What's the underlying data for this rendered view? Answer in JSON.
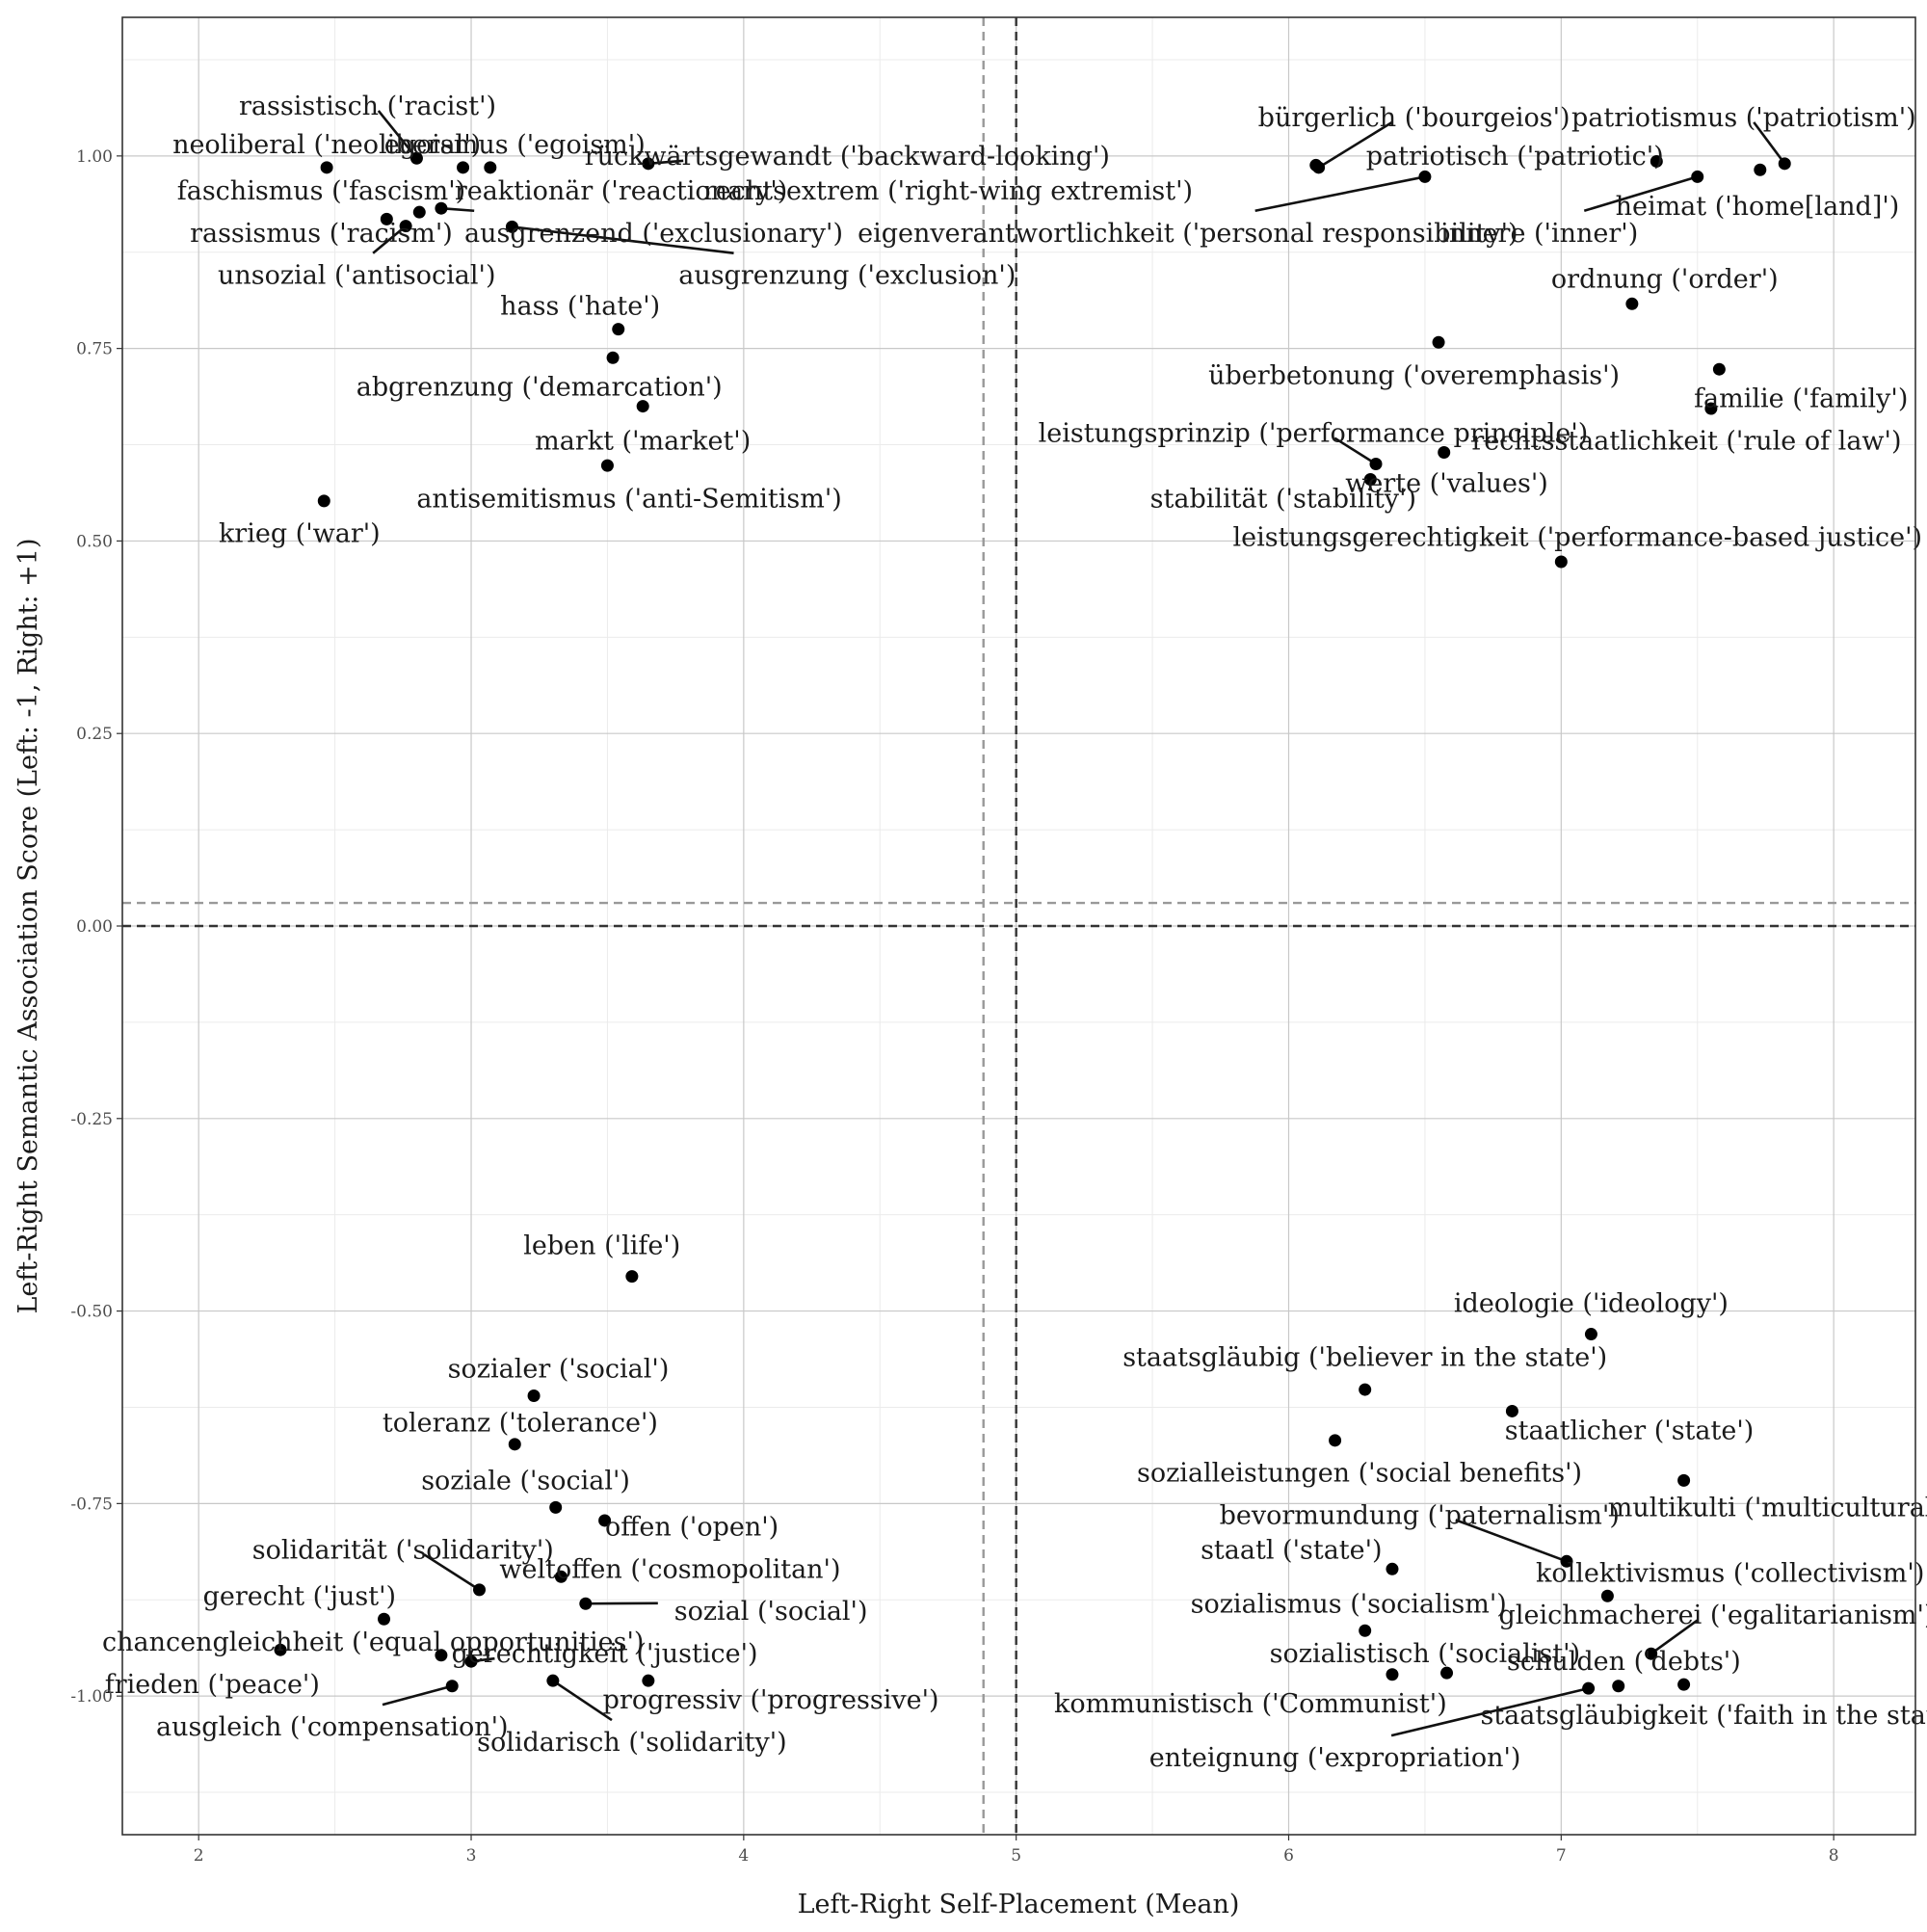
{
  "chart_data": {
    "type": "scatter",
    "title": "",
    "xlabel": "Left-Right Self-Placement (Mean)",
    "ylabel": "Left-Right Semantic Association Score (Left: -1, Right: +1)",
    "xlim": [
      1.72,
      8.3
    ],
    "ylim": [
      -1.18,
      1.18
    ],
    "x_ticks": [
      2,
      3,
      4,
      5,
      6,
      7,
      8
    ],
    "y_ticks": [
      -1.0,
      -0.75,
      -0.5,
      -0.25,
      0.0,
      0.25,
      0.5,
      0.75,
      1.0
    ],
    "x_tick_labels": [
      "2",
      "3",
      "4",
      "5",
      "6",
      "7",
      "8"
    ],
    "y_tick_labels": [
      "-1.00",
      "-0.75",
      "-0.50",
      "-0.25",
      "0.00",
      "0.25",
      "0.50",
      "0.75",
      "1.00"
    ],
    "grid": true,
    "reference_lines": [
      {
        "axis": "x",
        "value": 5.0,
        "style": "dashed",
        "color": "#333333"
      },
      {
        "axis": "x",
        "value": 4.88,
        "style": "dashed",
        "color": "#999999"
      },
      {
        "axis": "y",
        "value": 0.0,
        "style": "dashed",
        "color": "#333333"
      },
      {
        "axis": "y",
        "value": 0.03,
        "style": "dashed",
        "color": "#999999"
      }
    ],
    "points": [
      {
        "label": "rassistisch ('racist')",
        "x": 2.8,
        "y": 0.997,
        "lx": 2.62,
        "ly": 1.065,
        "leader": true
      },
      {
        "label": "neoliberal ('neoliberal')",
        "x": 2.47,
        "y": 0.985,
        "lx": 2.47,
        "ly": 1.015
      },
      {
        "label": "egoismus ('egoism')",
        "x": 3.07,
        "y": 0.985,
        "lx": 3.16,
        "ly": 1.015
      },
      {
        "label": "rückwärtsgewandt ('backward-looking')",
        "x": 3.65,
        "y": 0.99,
        "lx": 4.38,
        "ly": 1.0,
        "leader": true
      },
      {
        "label": "faschismus ('fascism')",
        "x": 2.69,
        "y": 0.918,
        "lx": 2.45,
        "ly": 0.955
      },
      {
        "label": "reaktionär ('reactionary')",
        "x": 2.97,
        "y": 0.985,
        "lx": 3.55,
        "ly": 0.955
      },
      {
        "label": "rassismus ('racism')",
        "x": 2.81,
        "y": 0.927,
        "lx": 2.45,
        "ly": 0.9
      },
      {
        "label": "unsozial ('antisocial')",
        "x": 2.76,
        "y": 0.909,
        "lx": 2.58,
        "ly": 0.845,
        "leader": true
      },
      {
        "label": "ausgrenzend ('exclusionary')",
        "x": 2.89,
        "y": 0.932,
        "lx": 3.67,
        "ly": 0.9,
        "leader": true
      },
      {
        "label": "ausgrenzung ('exclusion')",
        "x": 3.15,
        "y": 0.908,
        "lx": 4.38,
        "ly": 0.845,
        "leader": true
      },
      {
        "label": "hass ('hate')",
        "x": 3.54,
        "y": 0.775,
        "lx": 3.4,
        "ly": 0.805
      },
      {
        "label": "abgrenzung ('demarcation')",
        "x": 3.52,
        "y": 0.738,
        "lx": 3.25,
        "ly": 0.7
      },
      {
        "label": "markt ('market')",
        "x": 3.63,
        "y": 0.675,
        "lx": 3.63,
        "ly": 0.63
      },
      {
        "label": "antisemitismus ('anti-Semitism')",
        "x": 3.5,
        "y": 0.598,
        "lx": 3.58,
        "ly": 0.555
      },
      {
        "label": "krieg ('war')",
        "x": 2.46,
        "y": 0.552,
        "lx": 2.37,
        "ly": 0.51
      },
      {
        "label": "bürgerlich ('bourgeios')",
        "x": 6.11,
        "y": 0.985,
        "lx": 6.46,
        "ly": 1.05,
        "leader": true
      },
      {
        "label": "patriotismus ('patriotism')",
        "x": 7.82,
        "y": 0.99,
        "lx": 7.67,
        "ly": 1.05,
        "leader": true
      },
      {
        "label": "rechtsextrem ('right-wing extremist')",
        "x": 6.1,
        "y": 0.988,
        "lx": 4.75,
        "ly": 0.955
      },
      {
        "label": "patriotisch ('patriotic')",
        "x": 7.35,
        "y": 0.993,
        "lx": 6.83,
        "ly": 1.0
      },
      {
        "label": "heimat ('home[land]')",
        "x": 7.73,
        "y": 0.982,
        "lx": 7.72,
        "ly": 0.935
      },
      {
        "label": "eigenverantwortlichkeit ('personal responsibility')",
        "x": 6.5,
        "y": 0.973,
        "lx": 5.63,
        "ly": 0.9,
        "leader": true
      },
      {
        "label": "innere ('inner')",
        "x": 7.5,
        "y": 0.973,
        "lx": 6.92,
        "ly": 0.9,
        "leader": true
      },
      {
        "label": "ordnung ('order')",
        "x": 7.26,
        "y": 0.808,
        "lx": 7.38,
        "ly": 0.84
      },
      {
        "label": "überbetonung ('overemphasis')",
        "x": 6.55,
        "y": 0.758,
        "lx": 6.46,
        "ly": 0.715
      },
      {
        "label": "familie ('family')",
        "x": 7.58,
        "y": 0.723,
        "lx": 7.88,
        "ly": 0.685
      },
      {
        "label": "rechtsstaatlichkeit ('rule of law')",
        "x": 7.55,
        "y": 0.672,
        "lx": 7.46,
        "ly": 0.63
      },
      {
        "label": "leistungsprinzip ('performance principle')",
        "x": 6.32,
        "y": 0.6,
        "lx": 6.09,
        "ly": 0.64,
        "leader": true
      },
      {
        "label": "werte ('values')",
        "x": 6.57,
        "y": 0.615,
        "lx": 6.58,
        "ly": 0.575
      },
      {
        "label": "stabilität ('stability')",
        "x": 6.3,
        "y": 0.58,
        "lx": 5.98,
        "ly": 0.555
      },
      {
        "label": "leistungsgerechtigkeit ('performance-based justice')",
        "x": 7.0,
        "y": 0.473,
        "lx": 7.06,
        "ly": 0.505
      },
      {
        "label": "leben ('life')",
        "x": 3.59,
        "y": -0.455,
        "lx": 3.48,
        "ly": -0.415
      },
      {
        "label": "ideologie ('ideology')",
        "x": 7.11,
        "y": -0.53,
        "lx": 7.11,
        "ly": -0.49
      },
      {
        "label": "sozialer ('social')",
        "x": 3.23,
        "y": -0.61,
        "lx": 3.32,
        "ly": -0.575
      },
      {
        "label": "staatsgläubig ('believer in the state')",
        "x": 6.28,
        "y": -0.602,
        "lx": 6.28,
        "ly": -0.56
      },
      {
        "label": "staatlicher ('state')",
        "x": 6.82,
        "y": -0.63,
        "lx": 7.25,
        "ly": -0.655
      },
      {
        "label": "toleranz ('tolerance')",
        "x": 3.16,
        "y": -0.673,
        "lx": 3.18,
        "ly": -0.645
      },
      {
        "label": "sozialleistungen ('social benefits')",
        "x": 6.17,
        "y": -0.668,
        "lx": 6.26,
        "ly": -0.71
      },
      {
        "label": "multikulti ('multicultural')",
        "x": 7.45,
        "y": -0.72,
        "lx": 7.8,
        "ly": -0.755
      },
      {
        "label": "soziale ('social')",
        "x": 3.31,
        "y": -0.755,
        "lx": 3.2,
        "ly": -0.72
      },
      {
        "label": "offen ('open')",
        "x": 3.49,
        "y": -0.772,
        "lx": 3.81,
        "ly": -0.78
      },
      {
        "label": "bevormundung ('paternalism')",
        "x": 7.02,
        "y": -0.825,
        "lx": 6.48,
        "ly": -0.765,
        "leader": true
      },
      {
        "label": "solidarität ('solidarity')",
        "x": 3.03,
        "y": -0.862,
        "lx": 2.75,
        "ly": -0.81,
        "leader": true
      },
      {
        "label": "staatl ('state')",
        "x": 6.38,
        "y": -0.835,
        "lx": 6.01,
        "ly": -0.81
      },
      {
        "label": "weltoffen ('cosmopolitan')",
        "x": 3.33,
        "y": -0.845,
        "lx": 3.73,
        "ly": -0.835
      },
      {
        "label": "kollektivismus ('collectivism')",
        "x": 7.17,
        "y": -0.87,
        "lx": 7.62,
        "ly": -0.84
      },
      {
        "label": "gerecht ('just')",
        "x": 2.68,
        "y": -0.9,
        "lx": 2.37,
        "ly": -0.87
      },
      {
        "label": "sozial ('social')",
        "x": 3.42,
        "y": -0.88,
        "lx": 4.1,
        "ly": -0.89,
        "leader": true
      },
      {
        "label": "sozialismus ('socialism')",
        "x": 6.28,
        "y": -0.915,
        "lx": 6.22,
        "ly": -0.88
      },
      {
        "label": "gleichmacherei ('egalitarianism')",
        "x": 7.33,
        "y": -0.945,
        "lx": 7.57,
        "ly": -0.895,
        "leader": true
      },
      {
        "label": "chancengleichheit ('equal opportunities')",
        "x": 2.89,
        "y": -0.947,
        "lx": 2.64,
        "ly": -0.93
      },
      {
        "label": "gerechtigkeit ('justice')",
        "x": 3.0,
        "y": -0.955,
        "lx": 3.49,
        "ly": -0.945,
        "leader": true
      },
      {
        "label": "sozialistisch ('socialist')",
        "x": 6.58,
        "y": -0.97,
        "lx": 6.5,
        "ly": -0.945
      },
      {
        "label": "schulden ('debts')",
        "x": 7.21,
        "y": -0.987,
        "lx": 7.23,
        "ly": -0.955
      },
      {
        "label": "frieden ('peace')",
        "x": 2.3,
        "y": -0.94,
        "lx": 2.05,
        "ly": -0.985
      },
      {
        "label": "ausgleich ('compensation')",
        "x": 2.93,
        "y": -0.987,
        "lx": 2.49,
        "ly": -1.04,
        "leader": true
      },
      {
        "label": "kommunistisch ('Communist')",
        "x": 6.38,
        "y": -0.972,
        "lx": 5.86,
        "ly": -1.01
      },
      {
        "label": "progressiv ('progressive')",
        "x": 3.65,
        "y": -0.98,
        "lx": 4.1,
        "ly": -1.005
      },
      {
        "label": "staatsgläubigkeit ('faith in the state')",
        "x": 7.45,
        "y": -0.985,
        "lx": 7.6,
        "ly": -1.025
      },
      {
        "label": "solidarisch ('solidarity')",
        "x": 3.3,
        "y": -0.98,
        "lx": 3.59,
        "ly": -1.06,
        "leader": true
      },
      {
        "label": "enteignung ('expropriation')",
        "x": 7.1,
        "y": -0.99,
        "lx": 6.17,
        "ly": -1.08,
        "leader": true
      }
    ]
  }
}
